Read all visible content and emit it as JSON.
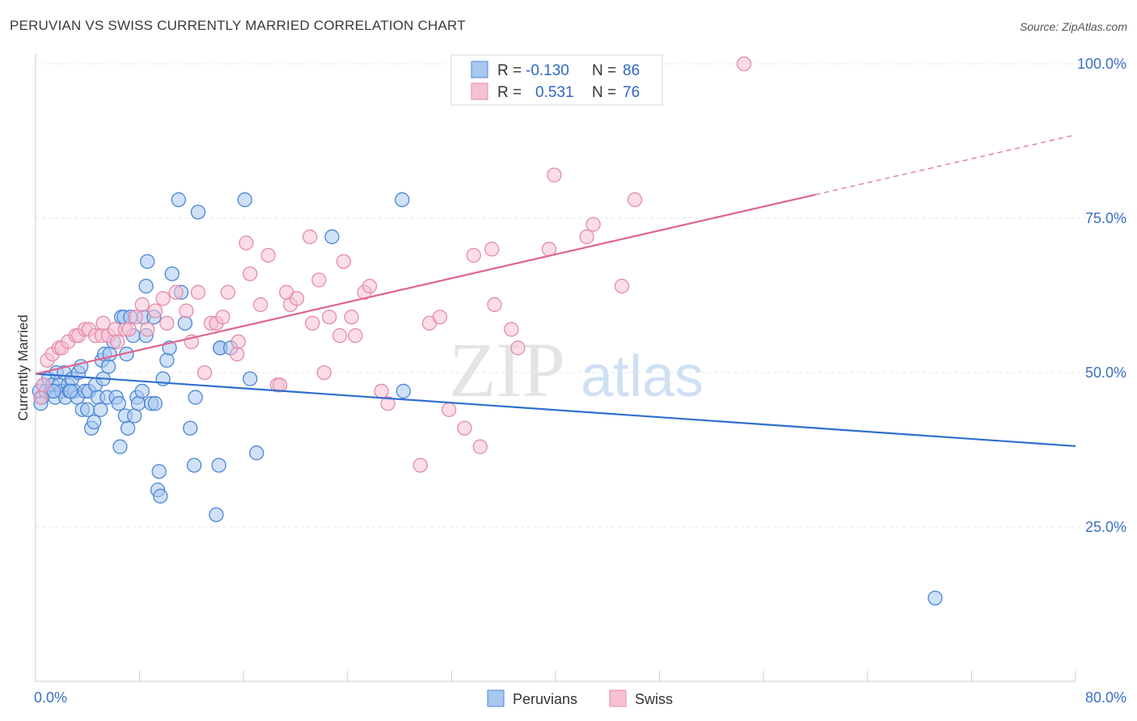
{
  "header": {
    "title": "PERUVIAN VS SWISS CURRENTLY MARRIED CORRELATION CHART",
    "source": "Source: ZipAtlas.com"
  },
  "watermark": {
    "zip": "ZIP",
    "atlas": "atlas"
  },
  "colors": {
    "blue_fill": "#a9c8f0",
    "blue_stroke": "#4a86d6",
    "blue_line": "#2f6fd0",
    "pink_fill": "#f6c1d3",
    "pink_stroke": "#e58aab",
    "pink_line": "#e0648f",
    "tick_text": "#3a6fc4"
  },
  "stats": [
    {
      "r_label": "R =",
      "r_value": "-0.130",
      "n_label": "N =",
      "n_value": "86"
    },
    {
      "r_label": "R =",
      "r_value": "0.531",
      "n_label": "N =",
      "n_value": "76"
    }
  ],
  "chart_data": {
    "type": "scatter",
    "title": "PERUVIAN VS SWISS CURRENTLY MARRIED CORRELATION CHART",
    "xlabel": "",
    "ylabel": "Currently Married",
    "xlim": [
      0,
      80
    ],
    "ylim": [
      0,
      102
    ],
    "x_tick_labels": [
      "0.0%",
      "80.0%"
    ],
    "y_ticks": [
      25,
      50,
      75,
      100
    ],
    "y_tick_labels": [
      "25.0%",
      "50.0%",
      "75.0%",
      "100.0%"
    ],
    "grid": true,
    "legend_position": "top-center and bottom",
    "series": [
      {
        "name": "Peruvians",
        "r": -0.13,
        "n": 86,
        "trend": {
          "x": [
            0,
            80
          ],
          "y": [
            49.8,
            38.1
          ],
          "dashed_from": null
        },
        "points": [
          [
            0.3,
            47
          ],
          [
            0.5,
            46
          ],
          [
            0.6,
            48
          ],
          [
            0.8,
            47
          ],
          [
            1.0,
            49
          ],
          [
            1.2,
            47
          ],
          [
            1.3,
            48
          ],
          [
            1.5,
            46
          ],
          [
            1.6,
            50
          ],
          [
            1.8,
            48
          ],
          [
            2.0,
            47
          ],
          [
            2.2,
            50
          ],
          [
            2.3,
            46
          ],
          [
            2.5,
            48
          ],
          [
            2.6,
            47
          ],
          [
            2.8,
            49
          ],
          [
            3.0,
            47
          ],
          [
            3.2,
            46
          ],
          [
            3.3,
            50
          ],
          [
            3.5,
            51
          ],
          [
            3.6,
            44
          ],
          [
            3.8,
            47
          ],
          [
            4.0,
            44
          ],
          [
            4.1,
            47
          ],
          [
            4.3,
            41
          ],
          [
            4.5,
            42
          ],
          [
            4.6,
            48
          ],
          [
            4.8,
            46
          ],
          [
            5.0,
            44
          ],
          [
            5.1,
            52
          ],
          [
            5.2,
            49
          ],
          [
            5.3,
            53
          ],
          [
            5.5,
            46
          ],
          [
            5.6,
            51
          ],
          [
            5.7,
            53
          ],
          [
            6.0,
            55
          ],
          [
            6.2,
            46
          ],
          [
            6.4,
            45
          ],
          [
            6.5,
            38
          ],
          [
            6.6,
            59
          ],
          [
            6.8,
            59
          ],
          [
            6.9,
            43
          ],
          [
            7.0,
            53
          ],
          [
            7.1,
            41
          ],
          [
            7.3,
            59
          ],
          [
            7.5,
            56
          ],
          [
            7.6,
            43
          ],
          [
            7.8,
            46
          ],
          [
            7.9,
            45
          ],
          [
            8.2,
            47
          ],
          [
            8.3,
            59
          ],
          [
            8.5,
            56
          ],
          [
            8.6,
            68
          ],
          [
            8.5,
            64
          ],
          [
            8.9,
            45
          ],
          [
            9.2,
            45
          ],
          [
            9.5,
            34
          ],
          [
            9.4,
            31
          ],
          [
            9.6,
            30
          ],
          [
            9.8,
            49
          ],
          [
            10.1,
            52
          ],
          [
            10.3,
            54
          ],
          [
            10.5,
            66
          ],
          [
            11.0,
            78
          ],
          [
            11.2,
            63
          ],
          [
            11.5,
            58
          ],
          [
            11.9,
            41
          ],
          [
            12.2,
            35
          ],
          [
            12.3,
            46
          ],
          [
            12.5,
            76
          ],
          [
            13.9,
            27
          ],
          [
            14.1,
            35
          ],
          [
            14.2,
            54
          ],
          [
            14.2,
            54
          ],
          [
            15.0,
            54
          ],
          [
            16.1,
            78
          ],
          [
            16.5,
            49
          ],
          [
            17.0,
            37
          ],
          [
            22.8,
            72
          ],
          [
            28.3,
            47
          ],
          [
            28.2,
            78
          ],
          [
            69.2,
            13.5
          ],
          [
            0.4,
            45
          ],
          [
            2.7,
            47
          ],
          [
            1.4,
            47
          ],
          [
            9.1,
            59
          ]
        ]
      },
      {
        "name": "Swiss",
        "r": 0.531,
        "n": 76,
        "trend": {
          "x": [
            0,
            80
          ],
          "y": [
            49.8,
            88.5
          ],
          "dashed_from": 60
        },
        "points": [
          [
            0.4,
            46
          ],
          [
            0.6,
            48
          ],
          [
            0.9,
            52
          ],
          [
            1.3,
            53
          ],
          [
            1.8,
            54
          ],
          [
            2.0,
            54
          ],
          [
            2.5,
            55
          ],
          [
            3.1,
            56
          ],
          [
            3.3,
            56
          ],
          [
            3.8,
            57
          ],
          [
            4.1,
            57
          ],
          [
            4.6,
            56
          ],
          [
            5.1,
            56
          ],
          [
            5.2,
            58
          ],
          [
            5.6,
            56
          ],
          [
            6.1,
            57
          ],
          [
            6.3,
            55
          ],
          [
            6.9,
            57
          ],
          [
            7.2,
            57
          ],
          [
            7.7,
            59
          ],
          [
            8.2,
            61
          ],
          [
            8.6,
            57
          ],
          [
            9.2,
            60
          ],
          [
            9.8,
            62
          ],
          [
            10.1,
            58
          ],
          [
            10.8,
            63
          ],
          [
            11.6,
            60
          ],
          [
            12.0,
            55
          ],
          [
            12.5,
            63
          ],
          [
            13.0,
            50
          ],
          [
            13.5,
            58
          ],
          [
            13.9,
            58
          ],
          [
            14.4,
            59
          ],
          [
            14.8,
            63
          ],
          [
            15.5,
            53
          ],
          [
            15.6,
            55
          ],
          [
            16.2,
            71
          ],
          [
            16.5,
            66
          ],
          [
            17.3,
            61
          ],
          [
            17.9,
            69
          ],
          [
            18.6,
            48
          ],
          [
            18.8,
            48
          ],
          [
            19.3,
            63
          ],
          [
            19.6,
            61
          ],
          [
            20.1,
            62
          ],
          [
            21.1,
            72
          ],
          [
            21.3,
            58
          ],
          [
            21.8,
            65
          ],
          [
            22.2,
            50
          ],
          [
            22.6,
            59
          ],
          [
            23.4,
            56
          ],
          [
            23.7,
            68
          ],
          [
            24.3,
            59
          ],
          [
            24.6,
            56
          ],
          [
            25.3,
            63
          ],
          [
            25.7,
            64
          ],
          [
            26.6,
            47
          ],
          [
            27.1,
            45
          ],
          [
            29.6,
            35
          ],
          [
            30.3,
            58
          ],
          [
            31.1,
            59
          ],
          [
            31.8,
            44
          ],
          [
            33.0,
            41
          ],
          [
            33.7,
            69
          ],
          [
            34.2,
            38
          ],
          [
            35.1,
            70
          ],
          [
            35.3,
            61
          ],
          [
            36.6,
            57
          ],
          [
            37.1,
            54
          ],
          [
            39.5,
            70
          ],
          [
            39.9,
            82
          ],
          [
            42.4,
            72
          ],
          [
            42.9,
            74
          ],
          [
            45.1,
            64
          ],
          [
            46.1,
            78
          ],
          [
            54.5,
            100
          ]
        ]
      }
    ]
  },
  "bottom_legend": [
    {
      "label": "Peruvians"
    },
    {
      "label": "Swiss"
    }
  ]
}
